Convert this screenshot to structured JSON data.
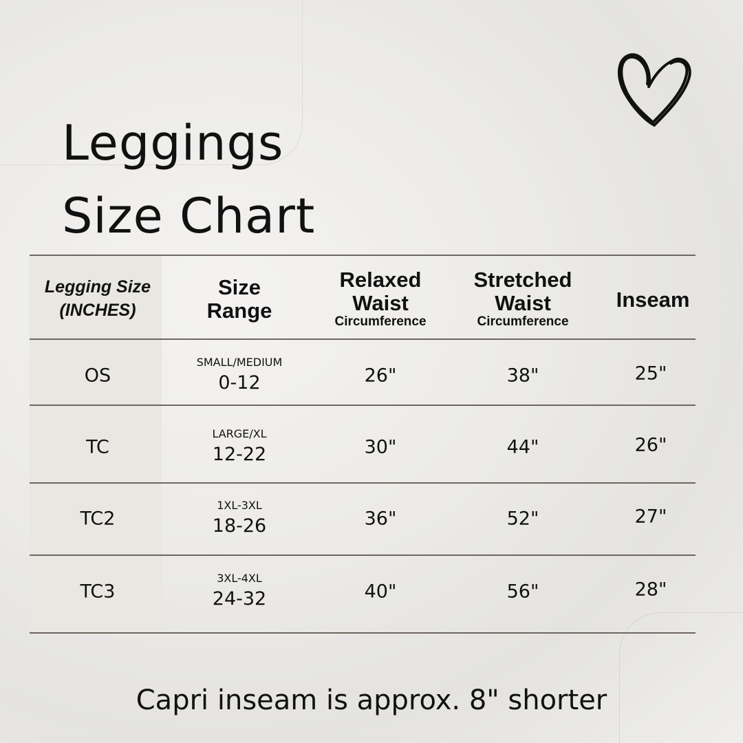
{
  "title_line1": "Leggings",
  "title_line2": "Size Chart",
  "icon": "heart-icon",
  "headers": {
    "size": "Legging Size",
    "size_unit": "(INCHES)",
    "range": "Size Range",
    "relaxed": "Relaxed Waist",
    "relaxed_sub": "Circumference",
    "stretched": "Stretched Waist",
    "stretched_sub": "Circumference",
    "inseam": "Inseam"
  },
  "rows": [
    {
      "size": "OS",
      "range_label": "SMALL/MEDIUM",
      "range": "0-12",
      "relaxed": "26\"",
      "stretched": "38\"",
      "inseam": "25\""
    },
    {
      "size": "TC",
      "range_label": "LARGE/XL",
      "range": "12-22",
      "relaxed": "30\"",
      "stretched": "44\"",
      "inseam": "26\""
    },
    {
      "size": "TC2",
      "range_label": "1XL-3XL",
      "range": "18-26",
      "relaxed": "36\"",
      "stretched": "52\"",
      "inseam": "27\""
    },
    {
      "size": "TC3",
      "range_label": "3XL-4XL",
      "range": "24-32",
      "relaxed": "40\"",
      "stretched": "56\"",
      "inseam": "28\""
    }
  ],
  "footnote": "Capri inseam is approx. 8\" shorter"
}
